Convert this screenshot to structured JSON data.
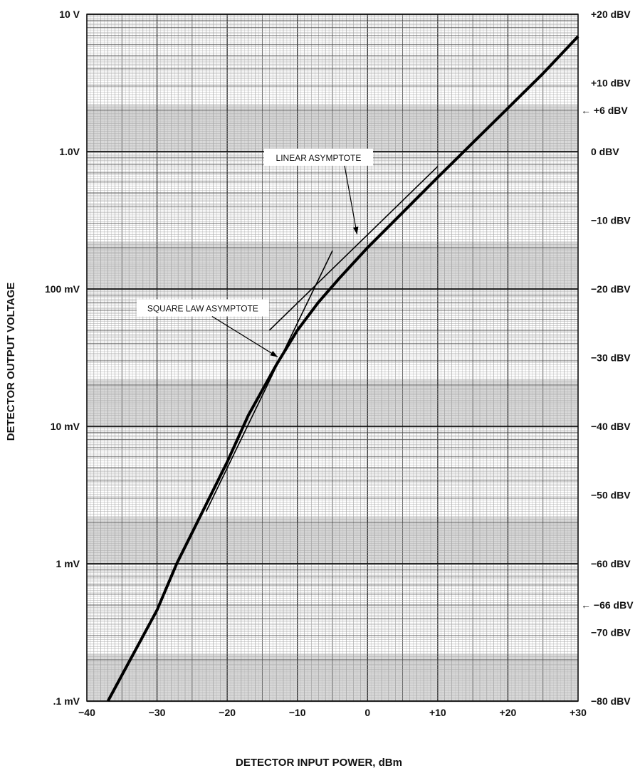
{
  "chart_data": {
    "type": "line",
    "title": "",
    "xlabel": "DETECTOR INPUT POWER, dBm",
    "ylabel": "DETECTOR OUTPUT VOLTAGE",
    "xlim": [
      -40,
      30
    ],
    "ylim": [
      0.0001,
      10
    ],
    "y_scale": "log",
    "grid": true,
    "x_ticks": [
      {
        "value": -40,
        "label": "−40"
      },
      {
        "value": -30,
        "label": "−30"
      },
      {
        "value": -20,
        "label": "−20"
      },
      {
        "value": -10,
        "label": "−10"
      },
      {
        "value": 0,
        "label": "0"
      },
      {
        "value": 10,
        "label": "+10"
      },
      {
        "value": 20,
        "label": "+20"
      },
      {
        "value": 30,
        "label": "+30"
      }
    ],
    "y_ticks_left": [
      {
        "value": 10,
        "label": "10 V"
      },
      {
        "value": 1,
        "label": "1.0V"
      },
      {
        "value": 0.1,
        "label": "100 mV"
      },
      {
        "value": 0.01,
        "label": "10 mV"
      },
      {
        "value": 0.001,
        "label": "1 mV"
      },
      {
        "value": 0.0001,
        "label": ".1 mV"
      }
    ],
    "y_ticks_right": [
      {
        "value": 20,
        "label": "+20 dBV"
      },
      {
        "value": 10,
        "label": "+10 dBV"
      },
      {
        "value": 6,
        "label": "+6 dBV",
        "arrow": true
      },
      {
        "value": 0,
        "label": "0 dBV"
      },
      {
        "value": -10,
        "label": "−10 dBV"
      },
      {
        "value": -20,
        "label": "−20 dBV"
      },
      {
        "value": -30,
        "label": "−30 dBV"
      },
      {
        "value": -40,
        "label": "−40 dBV"
      },
      {
        "value": -50,
        "label": "−50 dBV"
      },
      {
        "value": -60,
        "label": "−60 dBV"
      },
      {
        "value": -66,
        "label": "−66 dBV",
        "arrow": true
      },
      {
        "value": -70,
        "label": "−70 dBV"
      },
      {
        "value": -80,
        "label": "−80 dBV"
      }
    ],
    "series": [
      {
        "x": [
          -37,
          -30,
          -27.2,
          -20,
          -17,
          -13,
          -10,
          -7,
          -4,
          0,
          5,
          10,
          15,
          20,
          25,
          30
        ],
        "y": [
          0.0001,
          0.00046,
          0.001,
          0.0055,
          0.012,
          0.028,
          0.05,
          0.08,
          0.12,
          0.2,
          0.36,
          0.65,
          1.16,
          2.07,
          3.7,
          6.9
        ]
      },
      {
        "x": [
          -23,
          -5
        ],
        "y": [
          0.0024,
          0.19
        ]
      },
      {
        "x": [
          -14,
          10
        ],
        "y": [
          0.05,
          0.78
        ]
      }
    ],
    "annotations": [
      {
        "text": "LINEAR ASYMPTOTE",
        "x_from": -8,
        "y_from": 0.9,
        "x_to": -1.5,
        "y_to": 0.25
      },
      {
        "text": "SQUARE LAW ASYMPTOTE",
        "x_from": -25,
        "y_from": 0.072,
        "x_to": -12.8,
        "y_to": 0.032
      }
    ]
  }
}
